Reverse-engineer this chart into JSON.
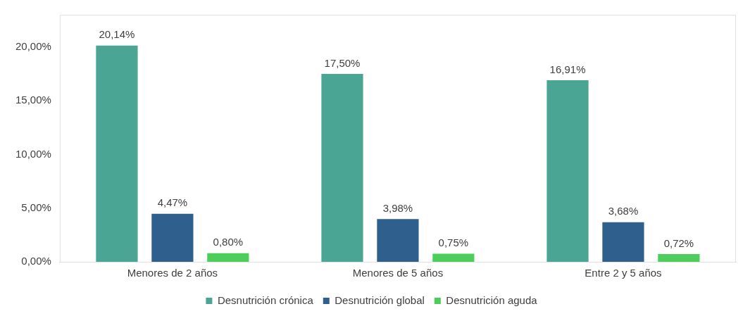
{
  "chart_data": {
    "type": "bar",
    "categories": [
      "Menores de 2 años",
      "Menores de 5 años",
      "Entre 2 y 5 años"
    ],
    "series": [
      {
        "name": "Desnutrición crónica",
        "color": "#4aa595",
        "values": [
          20.14,
          17.5,
          16.91
        ],
        "value_labels": [
          "20,14%",
          "17,50%",
          "16,91%"
        ]
      },
      {
        "name": "Desnutrición global",
        "color": "#2f5f8c",
        "values": [
          4.47,
          3.98,
          3.68
        ],
        "value_labels": [
          "4,47%",
          "3,98%",
          "3,68%"
        ]
      },
      {
        "name": "Desnutrición aguda",
        "color": "#4ccd5c",
        "values": [
          0.8,
          0.75,
          0.72
        ],
        "value_labels": [
          "0,80%",
          "0,75%",
          "0,72%"
        ]
      }
    ],
    "ylim": [
      0,
      23
    ],
    "yticks": [
      {
        "value": 0,
        "label": "0,00%"
      },
      {
        "value": 5,
        "label": "5,00%"
      },
      {
        "value": 10,
        "label": "10,00%"
      },
      {
        "value": 15,
        "label": "15,00%"
      },
      {
        "value": 20,
        "label": "20,00%"
      }
    ],
    "grid": false,
    "legend": "bottom"
  }
}
